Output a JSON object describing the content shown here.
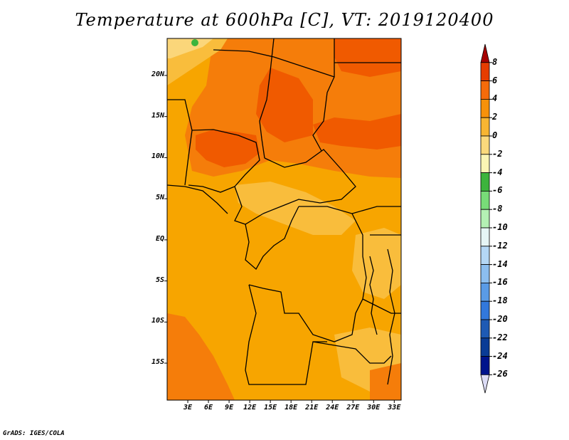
{
  "title": "Temperature at 600hPa [C], VT: 2019120400",
  "credit": "GrADS: IGES/COLA",
  "lat_labels": [
    "20N",
    "15N",
    "10N",
    "5N",
    "EQ",
    "5S",
    "10S",
    "15S"
  ],
  "lon_labels": [
    "3E",
    "6E",
    "9E",
    "12E",
    "15E",
    "18E",
    "21E",
    "24E",
    "27E",
    "30E",
    "33E"
  ],
  "colorbar": {
    "labels": [
      "8",
      "6",
      "4",
      "2",
      "0",
      "-2",
      "-4",
      "-6",
      "-8",
      "-10",
      "-12",
      "-14",
      "-16",
      "-18",
      "-20",
      "-22",
      "-24",
      "-26"
    ],
    "colors": [
      "#a60000",
      "#e63d00",
      "#f56b0a",
      "#f7910a",
      "#f7b532",
      "#fbd97c",
      "#fbf5b4",
      "#3cb43c",
      "#78dc78",
      "#b4f0b4",
      "#e6f5f5",
      "#b4d7f5",
      "#8cbeef",
      "#5a9be6",
      "#3278dc",
      "#1e5ab4",
      "#0a3c96",
      "#00148c",
      "#dcdcf5"
    ]
  },
  "map": {
    "lat_range": [
      -19.5,
      24.5
    ],
    "lon_range": [
      0,
      34
    ],
    "colors": {
      "base": "#f7a500",
      "warm": "#f57d0a",
      "hot": "#f05a00",
      "cool": "#f9bd3c",
      "coolest": "#fbd67a",
      "green": "#3cb43c"
    }
  }
}
